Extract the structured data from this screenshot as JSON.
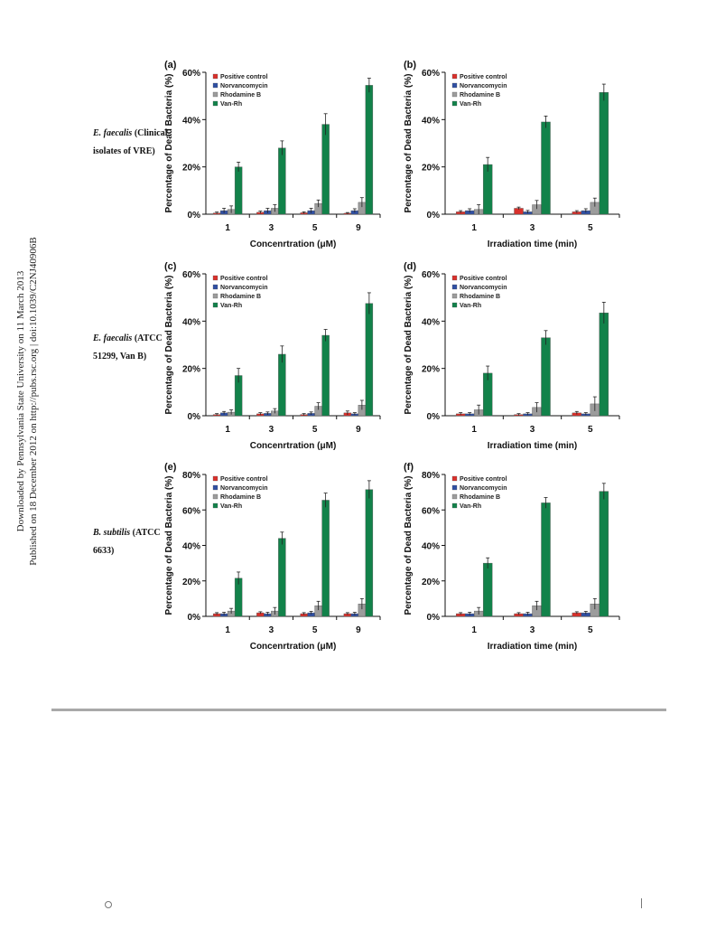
{
  "side_note": {
    "line1": "Downloaded by Pennsylvania State University on 11 March 2013",
    "line2": "Published on 18 December 2012 on http://pubs.rsc.org | doi:10.1039/C2NJ40906B"
  },
  "row_labels": [
    {
      "species": "E. faecalis",
      "detail": " (Clinical isolates of VRE)"
    },
    {
      "species": "E. faecalis",
      "detail": " (ATCC 51299, Van B)"
    },
    {
      "species": "B. subtilis",
      "detail": " (ATCC 6633)"
    }
  ],
  "colors": {
    "Positive control": "#d9302b",
    "Norvancomycin": "#2f4fa3",
    "Rhodamine B": "#9c9c9c",
    "Van-Rh": "#12824a"
  },
  "chart_data": [
    {
      "panel": "(a)",
      "type": "bar",
      "ylabel": "Percentage of Dead Bacteria (%)",
      "xlabel": "Concenrtration (μM)",
      "ylim": [
        0,
        60
      ],
      "yticks": [
        "0%",
        "20%",
        "40%",
        "60%"
      ],
      "categories": [
        "1",
        "3",
        "5",
        "9"
      ],
      "legend": "top-left",
      "series": [
        {
          "name": "Positive control",
          "values": [
            0.5,
            0.8,
            0.6,
            0.4
          ],
          "errors": [
            0.4,
            0.5,
            0.4,
            0.3
          ]
        },
        {
          "name": "Norvancomycin",
          "values": [
            1.5,
            1.5,
            1.5,
            1.5
          ],
          "errors": [
            1.0,
            1.0,
            1.0,
            0.8
          ]
        },
        {
          "name": "Rhodamine B",
          "values": [
            2,
            2.5,
            4.5,
            5
          ],
          "errors": [
            1.5,
            1.5,
            1.5,
            2
          ]
        },
        {
          "name": "Van-Rh",
          "values": [
            20,
            28,
            38,
            54.5
          ],
          "errors": [
            2,
            3,
            4.5,
            3
          ]
        }
      ]
    },
    {
      "panel": "(b)",
      "type": "bar",
      "ylabel": "Percentage of Dead Bacteria (%)",
      "xlabel": "Irradiation time (min)",
      "ylim": [
        0,
        60
      ],
      "yticks": [
        "0%",
        "20%",
        "40%",
        "60%"
      ],
      "categories": [
        "1",
        "3",
        "5"
      ],
      "legend": "top-left",
      "series": [
        {
          "name": "Positive control",
          "values": [
            1,
            2.5,
            1
          ],
          "errors": [
            0.5,
            0.5,
            0.5
          ]
        },
        {
          "name": "Norvancomycin",
          "values": [
            1.5,
            1,
            1.5
          ],
          "errors": [
            0.8,
            0.6,
            0.8
          ]
        },
        {
          "name": "Rhodamine B",
          "values": [
            2,
            4,
            5
          ],
          "errors": [
            2,
            1.8,
            1.8
          ]
        },
        {
          "name": "Van-Rh",
          "values": [
            21,
            39,
            51.5
          ],
          "errors": [
            3,
            2.5,
            3.5
          ]
        }
      ]
    },
    {
      "panel": "(c)",
      "type": "bar",
      "ylabel": "Percentage of Dead Bacteria (%)",
      "xlabel": "Concenrtration (μM)",
      "ylim": [
        0,
        60
      ],
      "yticks": [
        "0%",
        "20%",
        "40%",
        "60%"
      ],
      "categories": [
        "1",
        "3",
        "5",
        "9"
      ],
      "legend": "top-left",
      "series": [
        {
          "name": "Positive control",
          "values": [
            0.5,
            0.8,
            0.5,
            1.2
          ],
          "errors": [
            0.4,
            0.5,
            0.4,
            0.8
          ]
        },
        {
          "name": "Norvancomycin",
          "values": [
            1.2,
            1,
            1,
            0.8
          ],
          "errors": [
            0.6,
            0.6,
            0.6,
            0.5
          ]
        },
        {
          "name": "Rhodamine B",
          "values": [
            1.5,
            2,
            4,
            4.5
          ],
          "errors": [
            1,
            1,
            1.5,
            2
          ]
        },
        {
          "name": "Van-Rh",
          "values": [
            17,
            26,
            34,
            47.5
          ],
          "errors": [
            3,
            3.5,
            2.5,
            4.5
          ]
        }
      ]
    },
    {
      "panel": "(d)",
      "type": "bar",
      "ylabel": "Percentage of Dead Bacteria (%)",
      "xlabel": "Irradiation time (min)",
      "ylim": [
        0,
        60
      ],
      "yticks": [
        "0%",
        "20%",
        "40%",
        "60%"
      ],
      "categories": [
        "1",
        "3",
        "5"
      ],
      "legend": "top-left",
      "series": [
        {
          "name": "Positive control",
          "values": [
            0.8,
            0.5,
            1.2
          ],
          "errors": [
            0.5,
            0.4,
            0.6
          ]
        },
        {
          "name": "Norvancomycin",
          "values": [
            0.8,
            0.8,
            0.8
          ],
          "errors": [
            0.5,
            0.5,
            0.5
          ]
        },
        {
          "name": "Rhodamine B",
          "values": [
            2.5,
            3.5,
            5
          ],
          "errors": [
            2,
            2,
            3
          ]
        },
        {
          "name": "Van-Rh",
          "values": [
            18,
            33,
            43.5
          ],
          "errors": [
            3,
            3,
            4.5
          ]
        }
      ]
    },
    {
      "panel": "(e)",
      "type": "bar",
      "ylabel": "Percentage of Dead Bacteria (%)",
      "xlabel": "Concenrtration (μM)",
      "ylim": [
        0,
        80
      ],
      "yticks": [
        "0%",
        "20%",
        "40%",
        "60%",
        "80%"
      ],
      "categories": [
        "1",
        "3",
        "5",
        "9"
      ],
      "legend": "top-left",
      "series": [
        {
          "name": "Positive control",
          "values": [
            1.5,
            2,
            1.5,
            1.5
          ],
          "errors": [
            0.6,
            0.6,
            0.6,
            0.6
          ]
        },
        {
          "name": "Norvancomycin",
          "values": [
            1.5,
            1.5,
            2,
            1.5
          ],
          "errors": [
            0.8,
            0.8,
            0.8,
            0.8
          ]
        },
        {
          "name": "Rhodamine B",
          "values": [
            3,
            3,
            6,
            7
          ],
          "errors": [
            1.5,
            2,
            2.5,
            3
          ]
        },
        {
          "name": "Van-Rh",
          "values": [
            21.5,
            44,
            65.5,
            71.5
          ],
          "errors": [
            3.5,
            3.5,
            4,
            5
          ]
        }
      ]
    },
    {
      "panel": "(f)",
      "type": "bar",
      "ylabel": "Percentage of Dead Bacteria (%)",
      "xlabel": "Irradiation time (min)",
      "ylim": [
        0,
        80
      ],
      "yticks": [
        "0%",
        "20%",
        "40%",
        "60%",
        "80%"
      ],
      "categories": [
        "1",
        "3",
        "5"
      ],
      "legend": "top-left",
      "series": [
        {
          "name": "Positive control",
          "values": [
            1.5,
            1.5,
            2
          ],
          "errors": [
            0.6,
            0.6,
            0.6
          ]
        },
        {
          "name": "Norvancomycin",
          "values": [
            1.5,
            1.5,
            2
          ],
          "errors": [
            0.8,
            0.8,
            0.8
          ]
        },
        {
          "name": "Rhodamine B",
          "values": [
            3,
            6,
            7
          ],
          "errors": [
            2,
            2.5,
            3
          ]
        },
        {
          "name": "Van-Rh",
          "values": [
            30,
            64,
            70.5
          ],
          "errors": [
            3,
            3,
            4.5
          ]
        }
      ]
    }
  ]
}
